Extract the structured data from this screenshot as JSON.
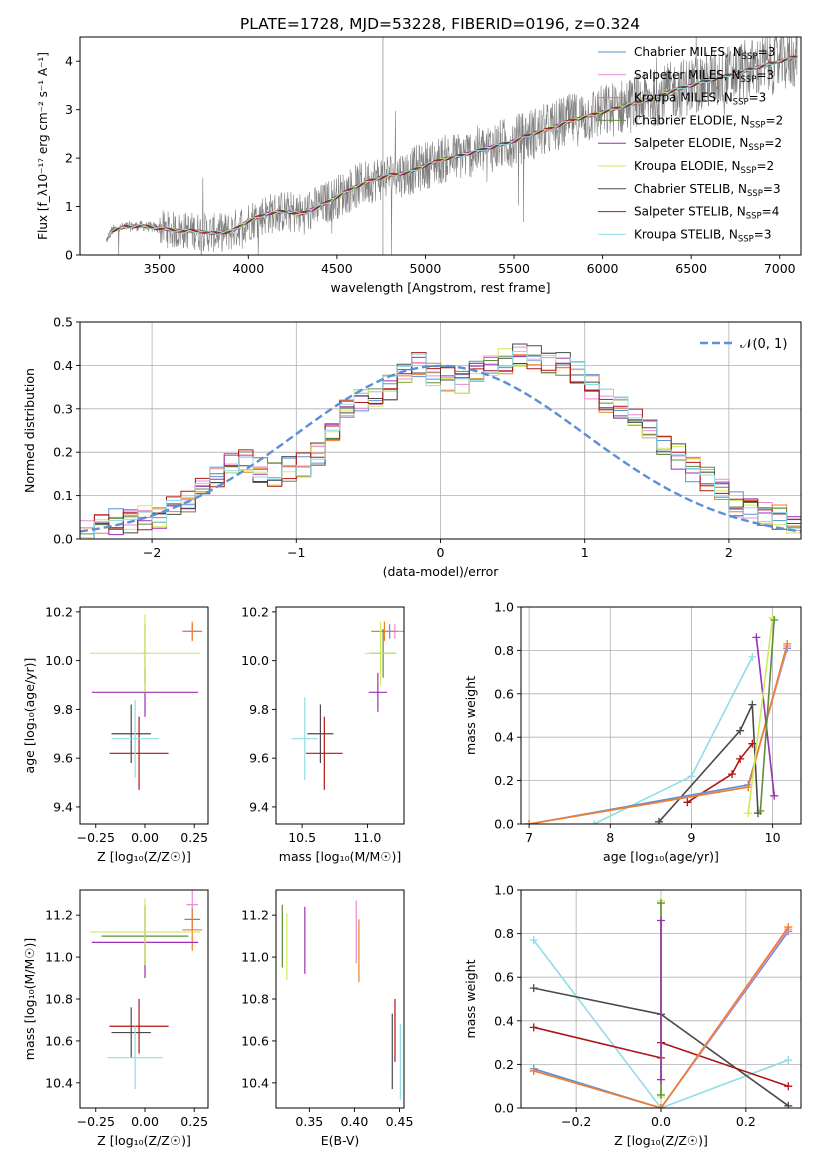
{
  "figure": {
    "title": "PLATE=1728, MJD=53228, FIBERID=0196, z=0.324"
  },
  "colors": {
    "Chabrier MILES": "#5b8fd6",
    "Salpeter MILES": "#e98ad5",
    "Kroupa MILES": "#f07f2a",
    "Chabrier ELODIE": "#5f8d3e",
    "Salpeter ELODIE": "#9b2fb5",
    "Kroupa ELODIE": "#d2ea5a",
    "Chabrier STELIB": "#4a4a4a",
    "Salpeter STELIB": "#b01515",
    "Kroupa STELIB": "#8fdde6",
    "data": "#808080",
    "normal": "#5b8fd6"
  },
  "chart_data": [
    {
      "id": "spectrum",
      "type": "line",
      "xlabel": "wavelength [Angstrom, rest frame]",
      "ylabel": "Flux [f_λ10⁻¹⁷ erg cm⁻² s⁻¹ A⁻¹]",
      "xlim": [
        3050,
        7120
      ],
      "ylim": [
        0,
        4.5
      ],
      "xticks": [
        3500,
        4000,
        4500,
        5000,
        5500,
        6000,
        6500,
        7000
      ],
      "yticks": [
        0,
        1,
        2,
        3,
        4
      ],
      "legend": "top-right",
      "legend_entries": [
        {
          "name": "Chabrier MILES",
          "nssp": "3"
        },
        {
          "name": "Salpeter MILES",
          "nssp": "3"
        },
        {
          "name": "Kroupa MILES",
          "nssp": "3"
        },
        {
          "name": "Chabrier ELODIE",
          "nssp": "2"
        },
        {
          "name": "Salpeter ELODIE",
          "nssp": "2"
        },
        {
          "name": "Kroupa ELODIE",
          "nssp": "2"
        },
        {
          "name": "Chabrier STELIB",
          "nssp": "3"
        },
        {
          "name": "Salpeter STELIB",
          "nssp": "4"
        },
        {
          "name": "Kroupa STELIB",
          "nssp": "3"
        }
      ],
      "model_continuum": {
        "x": [
          3200,
          3230,
          3300,
          3400,
          3500,
          3600,
          3700,
          3800,
          3900,
          4000,
          4100,
          4200,
          4300,
          4400,
          4500,
          4600,
          4700,
          4800,
          4900,
          5000,
          5100,
          5200,
          5300,
          5400,
          5500,
          5600,
          5700,
          5800,
          5900,
          6000,
          6100,
          6200,
          6300,
          6400,
          6500,
          6600,
          6700,
          6800,
          6900,
          7000,
          7100
        ],
        "y": [
          0.3,
          0.5,
          0.58,
          0.6,
          0.55,
          0.5,
          0.5,
          0.45,
          0.48,
          0.7,
          0.85,
          0.9,
          0.85,
          1.0,
          1.2,
          1.4,
          1.55,
          1.65,
          1.7,
          1.85,
          1.98,
          2.05,
          2.15,
          2.25,
          2.35,
          2.5,
          2.6,
          2.75,
          2.85,
          2.95,
          3.05,
          3.15,
          3.25,
          3.4,
          3.5,
          3.6,
          3.7,
          3.8,
          3.9,
          4.0,
          4.1
        ]
      }
    },
    {
      "id": "residuals",
      "type": "line",
      "xlabel": "(data-model)/error",
      "ylabel": "Normed distribution",
      "xlim": [
        -2.5,
        2.5
      ],
      "ylim": [
        0,
        0.5
      ],
      "xticks": [
        -2,
        -1,
        0,
        1,
        2
      ],
      "xticklabels": [
        "−2",
        "−1",
        "0",
        "1",
        "2"
      ],
      "yticks": [
        0.0,
        0.1,
        0.2,
        0.3,
        0.4,
        0.5
      ],
      "yticklabels": [
        "0.0",
        "0.1",
        "0.2",
        "0.3",
        "0.4",
        "0.5"
      ],
      "legend": "top-right",
      "normal_label": "𝒩(0, 1)",
      "bin_width": 0.1,
      "bin_edges_start": -2.5,
      "histogram": [
        0.02,
        0.03,
        0.04,
        0.04,
        0.05,
        0.05,
        0.07,
        0.09,
        0.12,
        0.15,
        0.17,
        0.18,
        0.16,
        0.15,
        0.16,
        0.17,
        0.2,
        0.25,
        0.3,
        0.32,
        0.33,
        0.35,
        0.38,
        0.4,
        0.38,
        0.37,
        0.36,
        0.38,
        0.4,
        0.41,
        0.42,
        0.42,
        0.41,
        0.4,
        0.38,
        0.35,
        0.32,
        0.3,
        0.28,
        0.25,
        0.21,
        0.19,
        0.16,
        0.14,
        0.11,
        0.08,
        0.07,
        0.06,
        0.05,
        0.04
      ]
    },
    {
      "id": "age-vs-Z",
      "type": "scatter",
      "xlabel": "Z [log₁₀(Z/Z☉)]",
      "ylabel": "age  [log₁₀(age/yr)]",
      "xlim": [
        -0.33,
        0.32
      ],
      "ylim": [
        9.33,
        10.22
      ],
      "xticks": [
        -0.25,
        0.0,
        0.25
      ],
      "xticklabels": [
        "−0.25",
        "0.00",
        "0.25"
      ],
      "yticks": [
        9.4,
        9.6,
        9.8,
        10.0,
        10.2
      ],
      "yticklabels": [
        "9.4",
        "9.6",
        "9.8",
        "10.0",
        "10.2"
      ],
      "points": [
        {
          "model": "Chabrier MILES",
          "x": 0.24,
          "y": 10.12,
          "xerr": 0.04,
          "yerr": 0.03
        },
        {
          "model": "Salpeter MILES",
          "x": 0.24,
          "y": 10.12,
          "xerr": 0.03,
          "yerr": 0.03
        },
        {
          "model": "Kroupa MILES",
          "x": 0.24,
          "y": 10.12,
          "xerr": 0.05,
          "yerr": 0.04
        },
        {
          "model": "Chabrier ELODIE",
          "x": 0.0,
          "y": 10.03,
          "xerr": 0.01,
          "yerr": 0.12
        },
        {
          "model": "Salpeter ELODIE",
          "x": 0.0,
          "y": 9.87,
          "xerr": 0.27,
          "yerr": 0.1
        },
        {
          "model": "Kroupa ELODIE",
          "x": 0.0,
          "y": 10.03,
          "xerr": 0.28,
          "yerr": 0.16
        },
        {
          "model": "Chabrier STELIB",
          "x": -0.07,
          "y": 9.7,
          "xerr": 0.1,
          "yerr": 0.12
        },
        {
          "model": "Salpeter STELIB",
          "x": -0.03,
          "y": 9.62,
          "xerr": 0.15,
          "yerr": 0.15
        },
        {
          "model": "Kroupa STELIB",
          "x": -0.05,
          "y": 9.68,
          "xerr": 0.12,
          "yerr": 0.16
        }
      ]
    },
    {
      "id": "age-vs-mass",
      "type": "scatter",
      "xlabel": "mass [log₁₀(M/M☉)]",
      "ylabel": "",
      "xlim": [
        10.3,
        11.28
      ],
      "ylim": [
        9.33,
        10.22
      ],
      "xticks": [
        10.5,
        11.0
      ],
      "xticklabels": [
        "10.5",
        "11.0"
      ],
      "yticks": [
        9.4,
        9.6,
        9.8,
        10.0,
        10.2
      ],
      "yticklabels": [
        "9.4",
        "9.6",
        "9.8",
        "10.0",
        "10.2"
      ],
      "points": [
        {
          "model": "Chabrier MILES",
          "x": 11.17,
          "y": 10.12,
          "xerr": 0.06,
          "yerr": 0.03
        },
        {
          "model": "Salpeter MILES",
          "x": 11.21,
          "y": 10.12,
          "xerr": 0.07,
          "yerr": 0.03
        },
        {
          "model": "Kroupa MILES",
          "x": 11.13,
          "y": 10.12,
          "xerr": 0.1,
          "yerr": 0.04
        },
        {
          "model": "Chabrier ELODIE",
          "x": 11.12,
          "y": 10.03,
          "xerr": 0.1,
          "yerr": 0.1
        },
        {
          "model": "Salpeter ELODIE",
          "x": 11.08,
          "y": 9.87,
          "xerr": 0.07,
          "yerr": 0.08
        },
        {
          "model": "Kroupa ELODIE",
          "x": 11.1,
          "y": 10.03,
          "xerr": 0.12,
          "yerr": 0.13
        },
        {
          "model": "Chabrier STELIB",
          "x": 10.64,
          "y": 9.7,
          "xerr": 0.1,
          "yerr": 0.12
        },
        {
          "model": "Salpeter STELIB",
          "x": 10.67,
          "y": 9.62,
          "xerr": 0.14,
          "yerr": 0.15
        },
        {
          "model": "Kroupa STELIB",
          "x": 10.52,
          "y": 9.68,
          "xerr": 0.1,
          "yerr": 0.17
        }
      ]
    },
    {
      "id": "weight-vs-age",
      "type": "line",
      "xlabel": "age  [log₁₀(age/yr)]",
      "ylabel": "mass weight",
      "xlim": [
        6.9,
        10.35
      ],
      "ylim": [
        0,
        1.0
      ],
      "xticks": [
        7,
        8,
        9,
        10
      ],
      "xticklabels": [
        "7",
        "8",
        "9",
        "10"
      ],
      "yticks": [
        0.0,
        0.2,
        0.4,
        0.6,
        0.8,
        1.0
      ],
      "yticklabels": [
        "0.0",
        "0.2",
        "0.4",
        "0.6",
        "0.8",
        "1.0"
      ],
      "series": [
        {
          "model": "Kroupa STELIB",
          "x": [
            7.8,
            9.0,
            9.75
          ],
          "y": [
            0.0,
            0.22,
            0.77
          ]
        },
        {
          "model": "Chabrier STELIB",
          "x": [
            8.6,
            9.6,
            9.75,
            9.82
          ],
          "y": [
            0.01,
            0.43,
            0.55,
            0.05
          ]
        },
        {
          "model": "Salpeter STELIB",
          "x": [
            8.95,
            9.5,
            9.6,
            9.75
          ],
          "y": [
            0.1,
            0.23,
            0.3,
            0.37
          ]
        },
        {
          "model": "Chabrier MILES",
          "x": [
            7.0,
            9.7,
            10.18
          ],
          "y": [
            0.0,
            0.18,
            0.81
          ]
        },
        {
          "model": "Salpeter MILES",
          "x": [
            7.0,
            9.7,
            10.18
          ],
          "y": [
            0.0,
            0.17,
            0.82
          ]
        },
        {
          "model": "Kroupa MILES",
          "x": [
            7.0,
            9.7,
            10.18
          ],
          "y": [
            0.0,
            0.17,
            0.83
          ]
        },
        {
          "model": "Salpeter ELODIE",
          "x": [
            9.8,
            10.02
          ],
          "y": [
            0.86,
            0.13
          ]
        },
        {
          "model": "Kroupa ELODIE",
          "x": [
            9.7,
            10.0
          ],
          "y": [
            0.05,
            0.95
          ]
        },
        {
          "model": "Chabrier ELODIE",
          "x": [
            9.85,
            10.02
          ],
          "y": [
            0.06,
            0.94
          ]
        }
      ]
    },
    {
      "id": "mass-vs-Z",
      "type": "scatter",
      "xlabel": "Z [log₁₀(Z/Z☉)]",
      "ylabel": "mass [log₁₀(M/M☉)]",
      "xlim": [
        -0.33,
        0.32
      ],
      "ylim": [
        10.28,
        11.32
      ],
      "xticks": [
        -0.25,
        0.0,
        0.25
      ],
      "xticklabels": [
        "−0.25",
        "0.00",
        "0.25"
      ],
      "yticks": [
        10.4,
        10.6,
        10.8,
        11.0,
        11.2
      ],
      "yticklabels": [
        "10.4",
        "10.6",
        "10.8",
        "11.0",
        "11.2"
      ],
      "points": [
        {
          "model": "Chabrier MILES",
          "x": 0.24,
          "y": 11.18,
          "xerr": 0.04,
          "yerr": 0.06
        },
        {
          "model": "Salpeter MILES",
          "x": 0.24,
          "y": 11.25,
          "xerr": 0.03,
          "yerr": 0.07
        },
        {
          "model": "Kroupa MILES",
          "x": 0.24,
          "y": 11.13,
          "xerr": 0.05,
          "yerr": 0.1
        },
        {
          "model": "Chabrier ELODIE",
          "x": 0.0,
          "y": 11.1,
          "xerr": 0.22,
          "yerr": 0.15
        },
        {
          "model": "Salpeter ELODIE",
          "x": 0.0,
          "y": 11.07,
          "xerr": 0.27,
          "yerr": 0.17
        },
        {
          "model": "Kroupa ELODIE",
          "x": 0.0,
          "y": 11.12,
          "xerr": 0.28,
          "yerr": 0.16
        },
        {
          "model": "Chabrier STELIB",
          "x": -0.07,
          "y": 10.64,
          "xerr": 0.1,
          "yerr": 0.12
        },
        {
          "model": "Salpeter STELIB",
          "x": -0.03,
          "y": 10.67,
          "xerr": 0.15,
          "yerr": 0.13
        },
        {
          "model": "Kroupa STELIB",
          "x": -0.05,
          "y": 10.52,
          "xerr": 0.14,
          "yerr": 0.15
        }
      ]
    },
    {
      "id": "mass-vs-EBV",
      "type": "scatter",
      "xlabel": "E(B-V)",
      "ylabel": "",
      "xlim": [
        0.313,
        0.455
      ],
      "ylim": [
        10.28,
        11.32
      ],
      "xticks": [
        0.35,
        0.4,
        0.45
      ],
      "xticklabels": [
        "0.35",
        "0.40",
        "0.45"
      ],
      "yticks": [
        10.4,
        10.6,
        10.8,
        11.0,
        11.2
      ],
      "yticklabels": [
        "10.4",
        "10.6",
        "10.8",
        "11.0",
        "11.2"
      ],
      "points": [
        {
          "model": "Chabrier ELODIE",
          "x": 0.32,
          "y": 11.1,
          "yerr": 0.15
        },
        {
          "model": "Kroupa ELODIE",
          "x": 0.325,
          "y": 11.05,
          "yerr": 0.16
        },
        {
          "model": "Salpeter ELODIE",
          "x": 0.345,
          "y": 11.08,
          "yerr": 0.16
        },
        {
          "model": "Salpeter MILES",
          "x": 0.402,
          "y": 11.12,
          "yerr": 0.15
        },
        {
          "model": "Kroupa MILES",
          "x": 0.405,
          "y": 11.03,
          "yerr": 0.15
        },
        {
          "model": "Chabrier STELIB",
          "x": 0.442,
          "y": 10.55,
          "yerr": 0.18
        },
        {
          "model": "Salpeter STELIB",
          "x": 0.445,
          "y": 10.65,
          "yerr": 0.15
        },
        {
          "model": "Kroupa STELIB",
          "x": 0.451,
          "y": 10.5,
          "yerr": 0.18
        }
      ]
    },
    {
      "id": "weight-vs-Z",
      "type": "line",
      "xlabel": "Z [log₁₀(Z/Z☉)]",
      "ylabel": "mass weight",
      "xlim": [
        -0.33,
        0.33
      ],
      "ylim": [
        0,
        1.0
      ],
      "xticks": [
        -0.2,
        0.0,
        0.2
      ],
      "xticklabels": [
        "−0.2",
        "0.0",
        "0.2"
      ],
      "yticks": [
        0.0,
        0.2,
        0.4,
        0.6,
        0.8,
        1.0
      ],
      "yticklabels": [
        "0.0",
        "0.2",
        "0.4",
        "0.6",
        "0.8",
        "1.0"
      ],
      "series": [
        {
          "model": "Kroupa STELIB",
          "x": [
            -0.3,
            0.0,
            0.3
          ],
          "y": [
            0.77,
            0.0,
            0.22
          ]
        },
        {
          "model": "Chabrier STELIB",
          "x": [
            -0.3,
            0.0,
            0.3
          ],
          "y": [
            0.55,
            0.43,
            0.01
          ]
        },
        {
          "model": "Salpeter STELIB",
          "x": [
            -0.3,
            0.0,
            0.0,
            0.3
          ],
          "y": [
            0.37,
            0.23,
            0.3,
            0.1
          ]
        },
        {
          "model": "Chabrier MILES",
          "x": [
            -0.3,
            0.0,
            0.3
          ],
          "y": [
            0.18,
            0.0,
            0.81
          ]
        },
        {
          "model": "Salpeter MILES",
          "x": [
            -0.3,
            0.0,
            0.3
          ],
          "y": [
            0.17,
            0.0,
            0.82
          ]
        },
        {
          "model": "Kroupa MILES",
          "x": [
            -0.3,
            0.0,
            0.3
          ],
          "y": [
            0.17,
            0.0,
            0.83
          ]
        },
        {
          "model": "Kroupa ELODIE",
          "x": [
            0.0,
            0.0
          ],
          "y": [
            0.05,
            0.95
          ]
        },
        {
          "model": "Chabrier ELODIE",
          "x": [
            0.0,
            0.0
          ],
          "y": [
            0.06,
            0.94
          ]
        },
        {
          "model": "Salpeter ELODIE",
          "x": [
            0.0,
            0.0
          ],
          "y": [
            0.13,
            0.86
          ]
        }
      ]
    }
  ]
}
